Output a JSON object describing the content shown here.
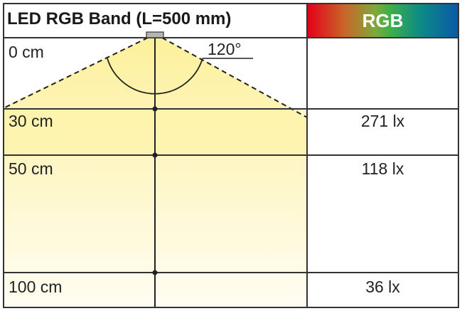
{
  "title": "LED RGB Band (L=500 mm)",
  "column_header": "RGB",
  "beam_angle": "120°",
  "rows": [
    {
      "distance": "0 cm",
      "illuminance": ""
    },
    {
      "distance": "30 cm",
      "illuminance": "271 lx"
    },
    {
      "distance": "50 cm",
      "illuminance": "118 lx"
    },
    {
      "distance": "100 cm",
      "illuminance": "36 lx"
    }
  ],
  "colors": {
    "light": "#fdf3a8",
    "border": "#333333"
  }
}
